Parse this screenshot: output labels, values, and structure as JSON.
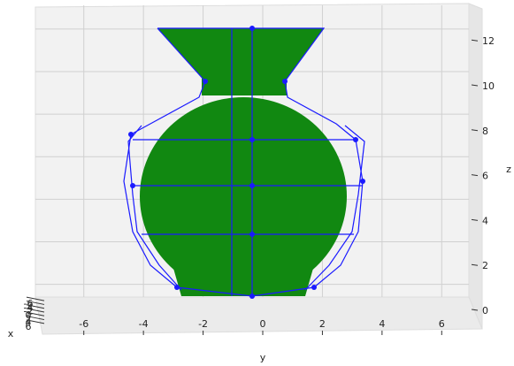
{
  "chart_data": {
    "type": "surface3d",
    "xlabel": "x",
    "ylabel": "y",
    "zlabel": "z",
    "xlim": [
      -7,
      7
    ],
    "ylim": [
      -7,
      7
    ],
    "zlim": [
      -0.6,
      13.2
    ],
    "xticks": [
      -6,
      -4,
      -2,
      0,
      2,
      4,
      6
    ],
    "yticks": [
      -6,
      -4,
      -2,
      0,
      2,
      4,
      6
    ],
    "zticks": [
      0,
      2,
      4,
      6,
      8,
      10,
      12
    ],
    "surface_color": "#118811",
    "net_color": "#1a1aff",
    "grid": true
  }
}
